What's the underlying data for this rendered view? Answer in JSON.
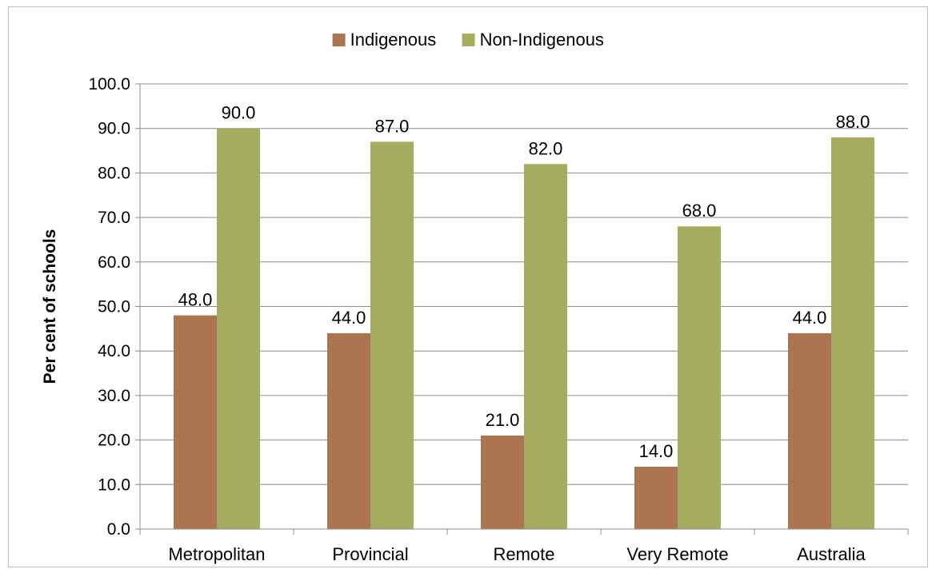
{
  "chart_data": {
    "type": "bar",
    "title": "",
    "xlabel": "",
    "ylabel": "Per cent of schools",
    "categories": [
      "Metropolitan",
      "Provincial",
      "Remote",
      "Very Remote",
      "Australia"
    ],
    "series": [
      {
        "name": "Indigenous",
        "color": "#AD7450",
        "values": [
          48.0,
          44.0,
          21.0,
          14.0,
          44.0
        ]
      },
      {
        "name": "Non-Indigenous",
        "color": "#A6AC5E",
        "values": [
          90.0,
          87.0,
          82.0,
          68.0,
          88.0
        ]
      }
    ],
    "ylim": [
      0,
      100
    ],
    "ytick_step": 10,
    "ytick_labels": [
      "0.0",
      "10.0",
      "20.0",
      "30.0",
      "40.0",
      "50.0",
      "60.0",
      "70.0",
      "80.0",
      "90.0",
      "100.0"
    ],
    "value_decimals": 1,
    "grid": true,
    "legend_position": "top-center"
  }
}
